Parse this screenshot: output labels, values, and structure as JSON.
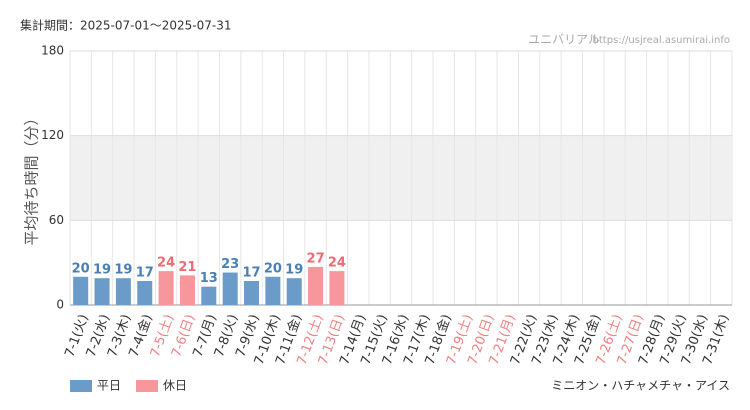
{
  "chart_data": {
    "type": "bar",
    "period": "集計期間：2025-07-01～2025-07-31",
    "source_name": "ユニバリアル",
    "source_url": "https://usjreal.asumirai.info",
    "y_label": "平均待ち時間（分）",
    "attraction": "ミニオン・ハチャメチャ・アイス",
    "categories": [
      "7-1(火)",
      "7-2(水)",
      "7-3(木)",
      "7-4(金)",
      "7-5(土)",
      "7-6(日)",
      "7-7(月)",
      "7-8(火)",
      "7-9(水)",
      "7-10(木)",
      "7-11(金)",
      "7-12(土)",
      "7-13(日)",
      "7-14(月)",
      "7-15(火)",
      "7-16(水)",
      "7-17(木)",
      "7-18(金)",
      "7-19(土)",
      "7-20(日)",
      "7-21(月)",
      "7-22(火)",
      "7-23(水)",
      "7-24(木)",
      "7-25(金)",
      "7-26(土)",
      "7-27(日)",
      "7-28(月)",
      "7-29(火)",
      "7-30(水)",
      "7-31(木)"
    ],
    "category_colors": [
      "#333",
      "#333",
      "#333",
      "#333",
      "#f08080",
      "#f08080",
      "#333",
      "#333",
      "#333",
      "#333",
      "#333",
      "#f08080",
      "#f08080",
      "#333",
      "#333",
      "#333",
      "#333",
      "#333",
      "#f08080",
      "#f08080",
      "#f08080",
      "#333",
      "#333",
      "#333",
      "#333",
      "#f08080",
      "#f08080",
      "#333",
      "#333",
      "#333",
      "#333"
    ],
    "series": [
      {
        "name": "平日",
        "color": "#6b9bc9",
        "label_color": "#4a7fb5",
        "values": [
          20,
          19,
          19,
          17,
          null,
          null,
          13,
          23,
          17,
          20,
          19,
          null,
          null,
          null,
          null,
          null,
          null,
          null,
          null,
          null,
          null,
          null,
          null,
          null,
          null,
          null,
          null,
          null,
          null,
          null,
          null
        ]
      },
      {
        "name": "休日",
        "color": "#f7979c",
        "label_color": "#ee6b73",
        "values": [
          null,
          null,
          null,
          null,
          24,
          21,
          null,
          null,
          null,
          null,
          null,
          27,
          24,
          null,
          null,
          null,
          null,
          null,
          null,
          null,
          null,
          null,
          null,
          null,
          null,
          null,
          null,
          null,
          null,
          null,
          null
        ]
      }
    ],
    "ylim": [
      0,
      180
    ],
    "yticks": [
      0,
      60,
      120,
      180
    ],
    "shaded_band": [
      60,
      120
    ],
    "grid": true
  }
}
